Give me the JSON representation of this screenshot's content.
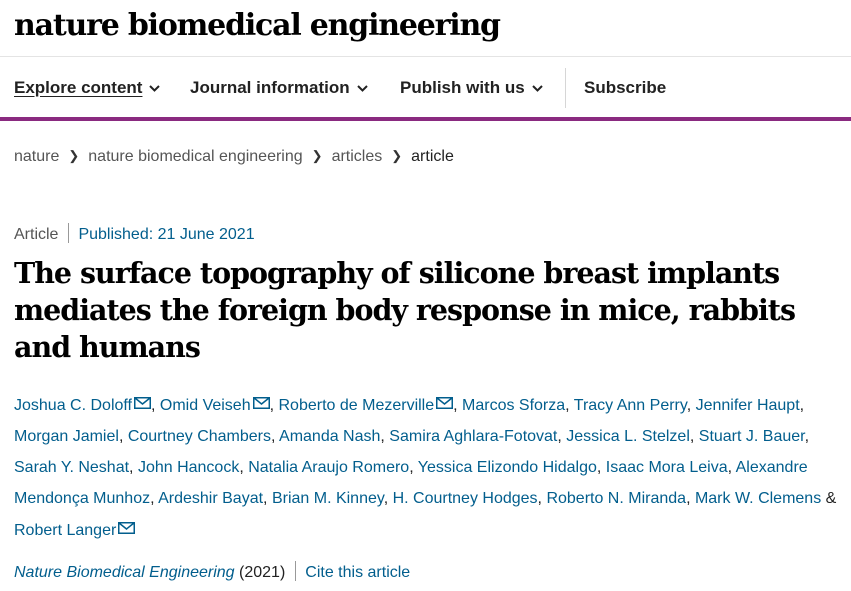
{
  "header": {
    "brand": "nature biomedical engineering"
  },
  "nav": {
    "items": [
      {
        "label": "Explore content",
        "dropdown": true
      },
      {
        "label": "Journal information",
        "dropdown": true
      },
      {
        "label": "Publish with us",
        "dropdown": true
      },
      {
        "label": "Subscribe",
        "dropdown": false
      }
    ]
  },
  "colors": {
    "accent": "#8a2a80",
    "link": "#025e8d"
  },
  "breadcrumb": [
    "nature",
    "nature biomedical engineering",
    "articles",
    "article"
  ],
  "article": {
    "type": "Article",
    "published": "Published: 21 June 2021",
    "title": "The surface topography of silicone breast implants mediates the foreign body response in mice, rabbits and humans",
    "authors": [
      {
        "name": "Joshua C. Doloff",
        "email_icon": true
      },
      {
        "name": "Omid Veiseh",
        "email_icon": true
      },
      {
        "name": "Roberto de Mezerville",
        "email_icon": true
      },
      {
        "name": "Marcos Sforza"
      },
      {
        "name": "Tracy Ann Perry"
      },
      {
        "name": "Jennifer Haupt"
      },
      {
        "name": "Morgan Jamiel"
      },
      {
        "name": "Courtney Chambers"
      },
      {
        "name": "Amanda Nash"
      },
      {
        "name": "Samira Aghlara-Fotovat"
      },
      {
        "name": "Jessica L. Stelzel"
      },
      {
        "name": "Stuart J. Bauer"
      },
      {
        "name": "Sarah Y. Neshat"
      },
      {
        "name": "John Hancock"
      },
      {
        "name": "Natalia Araujo Romero"
      },
      {
        "name": "Yessica Elizondo Hidalgo"
      },
      {
        "name": "Isaac Mora Leiva"
      },
      {
        "name": "Alexandre Mendonça Munhoz"
      },
      {
        "name": "Ardeshir Bayat"
      },
      {
        "name": "Brian M. Kinney"
      },
      {
        "name": "H. Courtney Hodges"
      },
      {
        "name": "Roberto N. Miranda"
      },
      {
        "name": "Mark W. Clemens"
      },
      {
        "name": "Robert Langer",
        "email_icon": true
      }
    ],
    "journal": "Nature Biomedical Engineering",
    "year": "(2021)",
    "cite_label": "Cite this article"
  }
}
